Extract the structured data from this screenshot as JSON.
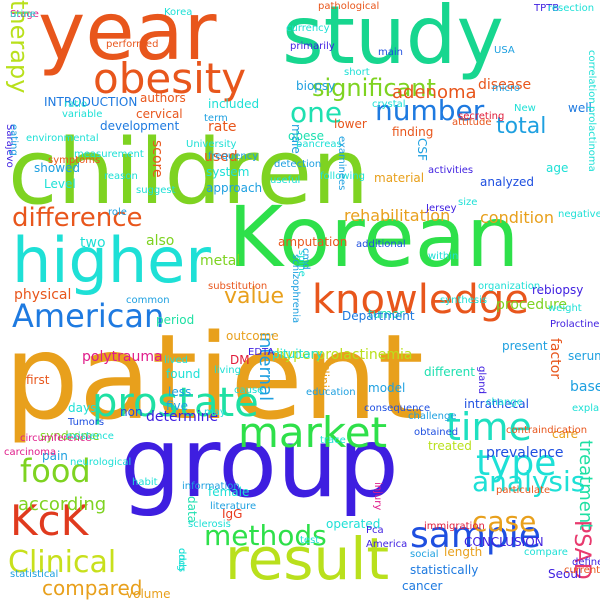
{
  "words": [
    {
      "text": "patient",
      "color": "#e8a01c"
    },
    {
      "text": "children",
      "color": "#7ed321"
    },
    {
      "text": "group",
      "color": "#3e1ee0"
    },
    {
      "text": "year",
      "color": "#e8561c"
    },
    {
      "text": "study",
      "color": "#17d68f"
    },
    {
      "text": "Korean",
      "color": "#2ee04a"
    },
    {
      "text": "result",
      "color": "#b9e01c"
    },
    {
      "text": "higher",
      "color": "#1ee0d6"
    },
    {
      "text": "obesity",
      "color": "#e8561c"
    },
    {
      "text": "knowledge",
      "color": "#e8561c"
    },
    {
      "text": "market",
      "color": "#2ee04a"
    },
    {
      "text": "prostate",
      "color": "#1ee0a3"
    },
    {
      "text": "American",
      "color": "#1e7ae0"
    },
    {
      "text": "KcK",
      "color": "#e03a1e"
    },
    {
      "text": "food",
      "color": "#7ed321"
    },
    {
      "text": "sample",
      "color": "#1e4fe0"
    },
    {
      "text": "time",
      "color": "#1ee0c0"
    },
    {
      "text": "methods",
      "color": "#2ee04a"
    },
    {
      "text": "Clinical",
      "color": "#c8e01c"
    },
    {
      "text": "type",
      "color": "#1ee0d6"
    },
    {
      "text": "difference",
      "color": "#e8561c"
    },
    {
      "text": "number",
      "color": "#1e7ae0"
    },
    {
      "text": "significant",
      "color": "#7ed321"
    },
    {
      "text": "one",
      "color": "#1ee0b0"
    },
    {
      "text": "case",
      "color": "#e8a01c"
    },
    {
      "text": "analysis",
      "color": "#1ee0d6"
    },
    {
      "text": "total",
      "color": "#1ea0e0"
    },
    {
      "text": "therapy",
      "color": "#b9e01c"
    },
    {
      "text": "adenoma",
      "color": "#e8561c"
    },
    {
      "text": "rehabilitation",
      "color": "#e8a01c"
    },
    {
      "text": "condition",
      "color": "#e8a01c"
    },
    {
      "text": "value",
      "color": "#e8a01c"
    },
    {
      "text": "compared",
      "color": "#e8a01c"
    },
    {
      "text": "according",
      "color": "#7ed321"
    },
    {
      "text": "PSAD",
      "color": "#e83a6e"
    },
    {
      "text": "treatment",
      "color": "#1ee0a3"
    },
    {
      "text": "disease",
      "color": "#e8561c"
    },
    {
      "text": "physical",
      "color": "#e8561c"
    },
    {
      "text": "also",
      "color": "#7ed321"
    },
    {
      "text": "two",
      "color": "#1ee0d6"
    },
    {
      "text": "metal",
      "color": "#7ed321"
    },
    {
      "text": "internal",
      "color": "#1ea0e0"
    },
    {
      "text": "hyperprolactinemia",
      "color": "#b9e01c"
    },
    {
      "text": "procedure",
      "color": "#7ed321"
    },
    {
      "text": "rebiopsy",
      "color": "#3e1ee0"
    },
    {
      "text": "tumor",
      "color": "#1ee0b0"
    },
    {
      "text": "factor",
      "color": "#e8561c"
    },
    {
      "text": "prevalence",
      "color": "#1e4fe0"
    },
    {
      "text": "based",
      "color": "#1ea0e0"
    },
    {
      "text": "period",
      "color": "#1ee0a3"
    },
    {
      "text": "outcome",
      "color": "#e8a01c"
    },
    {
      "text": "determine",
      "color": "#3e1ee0"
    },
    {
      "text": "polytrauma",
      "color": "#e01c8a"
    },
    {
      "text": "syndrome",
      "color": "#7ed321"
    },
    {
      "text": "pain",
      "color": "#1ea0e0"
    },
    {
      "text": "volume",
      "color": "#e8a01c"
    },
    {
      "text": "female",
      "color": "#1ee0d6"
    },
    {
      "text": "IgG",
      "color": "#e83a1e"
    },
    {
      "text": "operated",
      "color": "#1ee0d6"
    },
    {
      "text": "CONCLUSION",
      "color": "#3e1ee0"
    },
    {
      "text": "length",
      "color": "#e8a01c"
    },
    {
      "text": "cancer",
      "color": "#1e7ae0"
    },
    {
      "text": "statistically",
      "color": "#1e7ae0"
    },
    {
      "text": "score",
      "color": "#e8561c"
    },
    {
      "text": "used",
      "color": "#e8561c"
    },
    {
      "text": "rate",
      "color": "#e8561c"
    },
    {
      "text": "showed",
      "color": "#1ea0e0"
    },
    {
      "text": "development",
      "color": "#1e7ae0"
    },
    {
      "text": "cervical",
      "color": "#e8561c"
    },
    {
      "text": "authors",
      "color": "#e8561c"
    },
    {
      "text": "INTRODUCTION",
      "color": "#1e7ae0"
    },
    {
      "text": "included",
      "color": "#1ee0d6"
    },
    {
      "text": "lower",
      "color": "#e8561c"
    },
    {
      "text": "obese",
      "color": "#1ee0b0"
    },
    {
      "text": "biopsy",
      "color": "#1ea0e0"
    },
    {
      "text": "finding",
      "color": "#e8561c"
    },
    {
      "text": "well",
      "color": "#1e7ae0"
    },
    {
      "text": "analyzed",
      "color": "#1e4fe0"
    },
    {
      "text": "age",
      "color": "#1ee0d6"
    },
    {
      "text": "Level",
      "color": "#1ee0d6"
    },
    {
      "text": "approach",
      "color": "#1ea0e0"
    },
    {
      "text": "system",
      "color": "#1ee0d6"
    },
    {
      "text": "DM",
      "color": "#e01c3a"
    },
    {
      "text": "five",
      "color": "#1ea0e0"
    },
    {
      "text": "less",
      "color": "#1ea0e0"
    },
    {
      "text": "found",
      "color": "#1ee0d6"
    },
    {
      "text": "non",
      "color": "#1e4fe0"
    },
    {
      "text": "amputation",
      "color": "#e8561c"
    },
    {
      "text": "Department",
      "color": "#1e7ae0"
    },
    {
      "text": "material",
      "color": "#e8a01c"
    },
    {
      "text": "different",
      "color": "#1ee0b0"
    },
    {
      "text": "Clinic",
      "color": "#e8a01c"
    },
    {
      "text": "male",
      "color": "#1ea0e0"
    },
    {
      "text": "pituitary",
      "color": "#1ee0d6"
    },
    {
      "text": "Sarajevo",
      "color": "#3e1ee0"
    },
    {
      "text": "variable",
      "color": "#1ee0d6"
    },
    {
      "text": "ratio",
      "color": "#1ee0d6"
    },
    {
      "text": "TPTB",
      "color": "#3e1ee0"
    },
    {
      "text": "USA",
      "color": "#1ea0e0"
    },
    {
      "text": "New",
      "color": "#1ee0d6"
    },
    {
      "text": "treated",
      "color": "#b9e01c"
    },
    {
      "text": "present",
      "color": "#1ea0e0"
    },
    {
      "text": "model",
      "color": "#1ea0e0"
    },
    {
      "text": "intrathecal",
      "color": "#1e4fe0"
    },
    {
      "text": "serum",
      "color": "#1ea0e0"
    },
    {
      "text": "care",
      "color": "#e8a01c"
    },
    {
      "text": "within",
      "color": "#1ee0d6"
    },
    {
      "text": "CSF",
      "color": "#1ea0e0"
    },
    {
      "text": "detection",
      "color": "#1ea0e0"
    },
    {
      "text": "America",
      "color": "#3e1ee0"
    },
    {
      "text": "data",
      "color": "#1ee0b0"
    },
    {
      "text": "first",
      "color": "#e8561c"
    },
    {
      "text": "days",
      "color": "#1ee0d6"
    },
    {
      "text": "common",
      "color": "#1ea0e0"
    },
    {
      "text": "literature",
      "color": "#1ea0e0"
    },
    {
      "text": "EDTA",
      "color": "#3e1ee0"
    },
    {
      "text": "Seoul",
      "color": "#3e1ee0"
    },
    {
      "text": "compare",
      "color": "#1ee0d6"
    },
    {
      "text": "measurement",
      "color": "#1ee0d6"
    },
    {
      "text": "University",
      "color": "#1ee0d6"
    },
    {
      "text": "frequency",
      "color": "#1ea0e0"
    },
    {
      "text": "activities",
      "color": "#3e1ee0"
    },
    {
      "text": "size",
      "color": "#1ee0d6"
    },
    {
      "text": "symptoms",
      "color": "#e8561c"
    },
    {
      "text": "suggest",
      "color": "#1ee0d6"
    },
    {
      "text": "secreting",
      "color": "#e01c3a"
    },
    {
      "text": "resection",
      "color": "#1ee0d6"
    },
    {
      "text": "correlation",
      "color": "#1ee0d6"
    },
    {
      "text": "prolactinoma",
      "color": "#1ee0d6"
    },
    {
      "text": "negative",
      "color": "#1ee0d6"
    },
    {
      "text": "weight",
      "color": "#1ee0d6"
    },
    {
      "text": "Prolactine",
      "color": "#3e1ee0"
    },
    {
      "text": "gland",
      "color": "#3e1ee0"
    },
    {
      "text": "change",
      "color": "#1ee0d6"
    },
    {
      "text": "explained",
      "color": "#1ee0d6"
    },
    {
      "text": "organization",
      "color": "#1ee0d6"
    },
    {
      "text": "synthesis",
      "color": "#1ee0d6"
    },
    {
      "text": "additional",
      "color": "#1e4fe0"
    },
    {
      "text": "schizophrenia",
      "color": "#1ea0e0"
    },
    {
      "text": "substitution",
      "color": "#e8561c"
    },
    {
      "text": "lived",
      "color": "#1ee0d6"
    },
    {
      "text": "living",
      "color": "#1ee0d6"
    },
    {
      "text": "cause",
      "color": "#1ee0d6"
    },
    {
      "text": "education",
      "color": "#1ea0e0"
    },
    {
      "text": "consequence",
      "color": "#1e4fe0"
    },
    {
      "text": "challenge",
      "color": "#1ea0e0"
    },
    {
      "text": "contraindication",
      "color": "#e8561c"
    },
    {
      "text": "obtained",
      "color": "#1e4fe0"
    },
    {
      "text": "Tumors",
      "color": "#1e4fe0"
    },
    {
      "text": "circumference",
      "color": "#e01c8a"
    },
    {
      "text": "existence",
      "color": "#1ee0d6"
    },
    {
      "text": "carcinoma",
      "color": "#e01c8a"
    },
    {
      "text": "neurological",
      "color": "#1ee0d6"
    },
    {
      "text": "statistical",
      "color": "#1ea0e0"
    },
    {
      "text": "habit",
      "color": "#1ee0d6"
    },
    {
      "text": "information",
      "color": "#1ea0e0"
    },
    {
      "text": "sclerosis",
      "color": "#1ee0d6"
    },
    {
      "text": "Pca",
      "color": "#3e1ee0"
    },
    {
      "text": "injury",
      "color": "#e01c8a"
    },
    {
      "text": "immigration",
      "color": "#e01c3a"
    },
    {
      "text": "social",
      "color": "#1ea0e0"
    },
    {
      "text": "drug",
      "color": "#1ee0d6"
    },
    {
      "text": "test",
      "color": "#1ee0d6"
    },
    {
      "text": "defined",
      "color": "#3e1ee0"
    },
    {
      "text": "current",
      "color": "#e8561c"
    },
    {
      "text": "Korea",
      "color": "#1ee0d6"
    },
    {
      "text": "performed",
      "color": "#e8561c"
    },
    {
      "text": "primarily",
      "color": "#3e1ee0"
    },
    {
      "text": "pathological",
      "color": "#e8561c"
    },
    {
      "text": "currency",
      "color": "#1ee0d6"
    },
    {
      "text": "main",
      "color": "#1e4fe0"
    },
    {
      "text": "micro",
      "color": "#1ea0e0"
    },
    {
      "text": "crystal",
      "color": "#1ee0d6"
    },
    {
      "text": "short",
      "color": "#1ee0d6"
    },
    {
      "text": "attitude",
      "color": "#e8561c"
    },
    {
      "text": "environmental",
      "color": "#1ee0d6"
    },
    {
      "text": "eating",
      "color": "#1ea0e0"
    },
    {
      "text": "term",
      "color": "#1ea0e0"
    },
    {
      "text": "pancreas",
      "color": "#1ee0d6"
    },
    {
      "text": "following",
      "color": "#1ee0d6"
    },
    {
      "text": "useful",
      "color": "#1ee0d6"
    },
    {
      "text": "role",
      "color": "#1ea0e0"
    },
    {
      "text": "Jersey",
      "color": "#3e1ee0"
    },
    {
      "text": "spine",
      "color": "#1ee0d6"
    },
    {
      "text": "cmd",
      "color": "#1ea0e0"
    },
    {
      "text": "reason",
      "color": "#1ee0d6"
    },
    {
      "text": "may",
      "color": "#1ee0d6"
    },
    {
      "text": "trace",
      "color": "#1ee0d6"
    },
    {
      "text": "particulate",
      "color": "#e8561c"
    },
    {
      "text": "odds",
      "color": "#1ee0d6"
    },
    {
      "text": "examinees",
      "color": "#1ea0e0"
    },
    {
      "text": "Stage",
      "color": "#e01c8a"
    },
    {
      "text": "urine",
      "color": "#1ee0d6"
    }
  ]
}
